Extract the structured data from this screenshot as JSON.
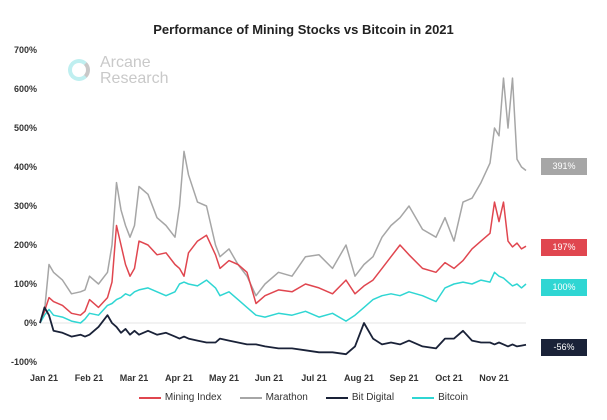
{
  "chart_data": {
    "type": "line",
    "title": "Performance of Mining Stocks vs Bitcoin in 2021",
    "watermark": [
      "Arcane",
      "Research"
    ],
    "xlabel": "",
    "ylabel": "",
    "ylim": [
      -100,
      700
    ],
    "yticks": [
      "700%",
      "600%",
      "500%",
      "400%",
      "300%",
      "200%",
      "100%",
      "0%",
      "-100%"
    ],
    "ytick_values": [
      700,
      600,
      500,
      400,
      300,
      200,
      100,
      0,
      -100
    ],
    "xticks": [
      "Jan 21",
      "Feb 21",
      "Mar 21",
      "Apr 21",
      "May 21",
      "Jun 21",
      "Jul 21",
      "Aug 21",
      "Sep 21",
      "Oct 21",
      "Nov 21"
    ],
    "x_unit": "months since Jan 1 2021",
    "x": [
      0,
      0.1,
      0.2,
      0.3,
      0.5,
      0.7,
      0.9,
      1.0,
      1.1,
      1.3,
      1.5,
      1.6,
      1.7,
      1.8,
      1.9,
      2.0,
      2.1,
      2.2,
      2.4,
      2.6,
      2.8,
      3.0,
      3.1,
      3.2,
      3.3,
      3.5,
      3.7,
      3.9,
      4.0,
      4.2,
      4.4,
      4.6,
      4.8,
      5.0,
      5.3,
      5.6,
      5.9,
      6.2,
      6.5,
      6.8,
      7.0,
      7.2,
      7.4,
      7.6,
      7.8,
      8.0,
      8.2,
      8.5,
      8.8,
      9.0,
      9.2,
      9.4,
      9.6,
      9.8,
      10.0,
      10.1,
      10.2,
      10.3,
      10.4,
      10.5,
      10.6,
      10.7,
      10.8
    ],
    "grid": false,
    "baseline": 0,
    "legend": "bottom",
    "series": [
      {
        "name": "Mining Index",
        "color": "#e0464f",
        "end_label": "197%",
        "values": [
          0,
          30,
          65,
          55,
          45,
          25,
          20,
          30,
          60,
          40,
          65,
          105,
          250,
          200,
          150,
          120,
          140,
          210,
          200,
          175,
          180,
          150,
          140,
          120,
          180,
          210,
          225,
          175,
          140,
          160,
          150,
          130,
          50,
          70,
          85,
          80,
          100,
          90,
          75,
          110,
          75,
          95,
          110,
          140,
          170,
          200,
          175,
          140,
          130,
          155,
          140,
          160,
          190,
          210,
          230,
          310,
          260,
          310,
          210,
          195,
          205,
          190,
          197
        ]
      },
      {
        "name": "Marathon",
        "color": "#a6a6a6",
        "end_label": "391%",
        "values": [
          0,
          30,
          150,
          130,
          110,
          75,
          80,
          85,
          120,
          100,
          130,
          200,
          360,
          290,
          250,
          220,
          250,
          350,
          330,
          270,
          250,
          220,
          300,
          440,
          380,
          310,
          300,
          200,
          170,
          190,
          150,
          120,
          70,
          100,
          130,
          120,
          170,
          175,
          140,
          200,
          120,
          150,
          170,
          220,
          250,
          270,
          300,
          240,
          220,
          270,
          210,
          310,
          320,
          360,
          410,
          500,
          480,
          628,
          500,
          628,
          420,
          400,
          391
        ]
      },
      {
        "name": "Bit Digital",
        "color": "#1a2238",
        "end_label": "-56%",
        "values": [
          0,
          40,
          20,
          -20,
          -25,
          -35,
          -30,
          -35,
          -30,
          -10,
          20,
          0,
          -10,
          -25,
          -15,
          -30,
          -20,
          -30,
          -20,
          -30,
          -25,
          -35,
          -40,
          -35,
          -40,
          -45,
          -50,
          -50,
          -40,
          -45,
          -50,
          -55,
          -55,
          -60,
          -65,
          -65,
          -70,
          -75,
          -75,
          -80,
          -60,
          0,
          -40,
          -55,
          -50,
          -55,
          -45,
          -60,
          -65,
          -40,
          -40,
          -20,
          -45,
          -50,
          -50,
          -55,
          -50,
          -55,
          -60,
          -55,
          -60,
          -58,
          -56
        ]
      },
      {
        "name": "Bitcoin",
        "color": "#2fd6d3",
        "end_label": "100%",
        "values": [
          0,
          20,
          35,
          20,
          15,
          5,
          0,
          10,
          25,
          20,
          45,
          50,
          60,
          65,
          75,
          70,
          80,
          85,
          90,
          80,
          70,
          80,
          100,
          105,
          100,
          95,
          110,
          90,
          70,
          80,
          60,
          40,
          20,
          15,
          25,
          20,
          30,
          15,
          25,
          5,
          20,
          40,
          60,
          70,
          75,
          70,
          80,
          70,
          55,
          90,
          100,
          105,
          100,
          110,
          105,
          130,
          120,
          115,
          105,
          95,
          100,
          90,
          100
        ]
      }
    ]
  },
  "end_labels": {
    "marathon": "391%",
    "mining_index": "197%",
    "bitcoin": "100%",
    "bit_digital": "-56%"
  },
  "legend_items": [
    "Mining Index",
    "Marathon",
    "Bit Digital",
    "Bitcoin"
  ]
}
